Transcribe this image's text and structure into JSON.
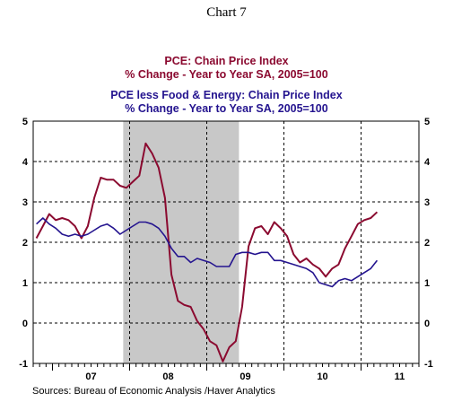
{
  "chart_label": "Chart 7",
  "source": "Sources:  Bureau of Economic Analysis /Haver Analytics",
  "colors": {
    "pce": "#8b0a30",
    "core": "#24148f",
    "recession": "#c8c8c8"
  },
  "chart_data": {
    "type": "line",
    "title_lines": [
      {
        "name": "PCE: Chain Price Index",
        "units": "% Change - Year to Year    SA, 2005=100"
      },
      {
        "name": "PCE less Food & Energy: Chain Price Index",
        "units": "% Change - Year to Year    SA, 2005=100"
      }
    ],
    "x_range": [
      2006.75,
      2011.75
    ],
    "ylim": [
      -1,
      5
    ],
    "y_ticks": [
      "-1",
      "0",
      "1",
      "2",
      "3",
      "4",
      "5"
    ],
    "x_labels": [
      {
        "label": "07",
        "x": 2007.5
      },
      {
        "label": "08",
        "x": 2008.5
      },
      {
        "label": "09",
        "x": 2009.5
      },
      {
        "label": "10",
        "x": 2010.5
      },
      {
        "label": "11",
        "x": 2011.5
      }
    ],
    "grid": true,
    "recession": {
      "start": 2007.917,
      "end": 2009.417
    },
    "series": [
      {
        "name": "PCE: Chain Price Index",
        "color": "#8b0a30",
        "values": [
          [
            2006.792,
            2.1
          ],
          [
            2006.875,
            2.4
          ],
          [
            2006.958,
            2.7
          ],
          [
            2007.042,
            2.55
          ],
          [
            2007.125,
            2.6
          ],
          [
            2007.208,
            2.55
          ],
          [
            2007.292,
            2.4
          ],
          [
            2007.375,
            2.1
          ],
          [
            2007.458,
            2.4
          ],
          [
            2007.542,
            3.1
          ],
          [
            2007.625,
            3.6
          ],
          [
            2007.708,
            3.55
          ],
          [
            2007.792,
            3.55
          ],
          [
            2007.875,
            3.4
          ],
          [
            2007.958,
            3.35
          ],
          [
            2008.042,
            3.5
          ],
          [
            2008.125,
            3.65
          ],
          [
            2008.208,
            4.45
          ],
          [
            2008.292,
            4.2
          ],
          [
            2008.375,
            3.85
          ],
          [
            2008.458,
            3.1
          ],
          [
            2008.542,
            1.2
          ],
          [
            2008.625,
            0.55
          ],
          [
            2008.708,
            0.45
          ],
          [
            2008.792,
            0.4
          ],
          [
            2008.875,
            0.05
          ],
          [
            2008.958,
            -0.15
          ],
          [
            2009.042,
            -0.45
          ],
          [
            2009.125,
            -0.55
          ],
          [
            2009.208,
            -0.95
          ],
          [
            2009.292,
            -0.6
          ],
          [
            2009.375,
            -0.45
          ],
          [
            2009.458,
            0.4
          ],
          [
            2009.542,
            1.9
          ],
          [
            2009.625,
            2.35
          ],
          [
            2009.708,
            2.4
          ],
          [
            2009.792,
            2.2
          ],
          [
            2009.875,
            2.5
          ],
          [
            2009.958,
            2.35
          ],
          [
            2010.042,
            2.15
          ],
          [
            2010.125,
            1.7
          ],
          [
            2010.208,
            1.5
          ],
          [
            2010.292,
            1.6
          ],
          [
            2010.375,
            1.45
          ],
          [
            2010.458,
            1.35
          ],
          [
            2010.542,
            1.15
          ],
          [
            2010.625,
            1.35
          ],
          [
            2010.708,
            1.45
          ],
          [
            2010.792,
            1.85
          ],
          [
            2010.875,
            2.15
          ],
          [
            2010.958,
            2.45
          ],
          [
            2011.042,
            2.55
          ],
          [
            2011.125,
            2.6
          ],
          [
            2011.208,
            2.75
          ]
        ]
      },
      {
        "name": "PCE less Food & Energy: Chain Price Index",
        "color": "#24148f",
        "values": [
          [
            2006.792,
            2.45
          ],
          [
            2006.875,
            2.6
          ],
          [
            2006.958,
            2.45
          ],
          [
            2007.042,
            2.35
          ],
          [
            2007.125,
            2.2
          ],
          [
            2007.208,
            2.15
          ],
          [
            2007.292,
            2.2
          ],
          [
            2007.375,
            2.15
          ],
          [
            2007.458,
            2.2
          ],
          [
            2007.542,
            2.3
          ],
          [
            2007.625,
            2.4
          ],
          [
            2007.708,
            2.45
          ],
          [
            2007.792,
            2.35
          ],
          [
            2007.875,
            2.2
          ],
          [
            2007.958,
            2.3
          ],
          [
            2008.042,
            2.4
          ],
          [
            2008.125,
            2.5
          ],
          [
            2008.208,
            2.5
          ],
          [
            2008.292,
            2.45
          ],
          [
            2008.375,
            2.35
          ],
          [
            2008.458,
            2.15
          ],
          [
            2008.542,
            1.85
          ],
          [
            2008.625,
            1.65
          ],
          [
            2008.708,
            1.65
          ],
          [
            2008.792,
            1.5
          ],
          [
            2008.875,
            1.6
          ],
          [
            2008.958,
            1.55
          ],
          [
            2009.042,
            1.5
          ],
          [
            2009.125,
            1.4
          ],
          [
            2009.208,
            1.4
          ],
          [
            2009.292,
            1.4
          ],
          [
            2009.375,
            1.7
          ],
          [
            2009.458,
            1.75
          ],
          [
            2009.542,
            1.75
          ],
          [
            2009.625,
            1.7
          ],
          [
            2009.708,
            1.75
          ],
          [
            2009.792,
            1.75
          ],
          [
            2009.875,
            1.55
          ],
          [
            2009.958,
            1.55
          ],
          [
            2010.042,
            1.5
          ],
          [
            2010.125,
            1.45
          ],
          [
            2010.208,
            1.4
          ],
          [
            2010.292,
            1.35
          ],
          [
            2010.375,
            1.25
          ],
          [
            2010.458,
            1.0
          ],
          [
            2010.542,
            0.95
          ],
          [
            2010.625,
            0.9
          ],
          [
            2010.708,
            1.05
          ],
          [
            2010.792,
            1.1
          ],
          [
            2010.875,
            1.05
          ],
          [
            2010.958,
            1.15
          ],
          [
            2011.042,
            1.25
          ],
          [
            2011.125,
            1.35
          ],
          [
            2011.208,
            1.55
          ]
        ]
      }
    ]
  }
}
